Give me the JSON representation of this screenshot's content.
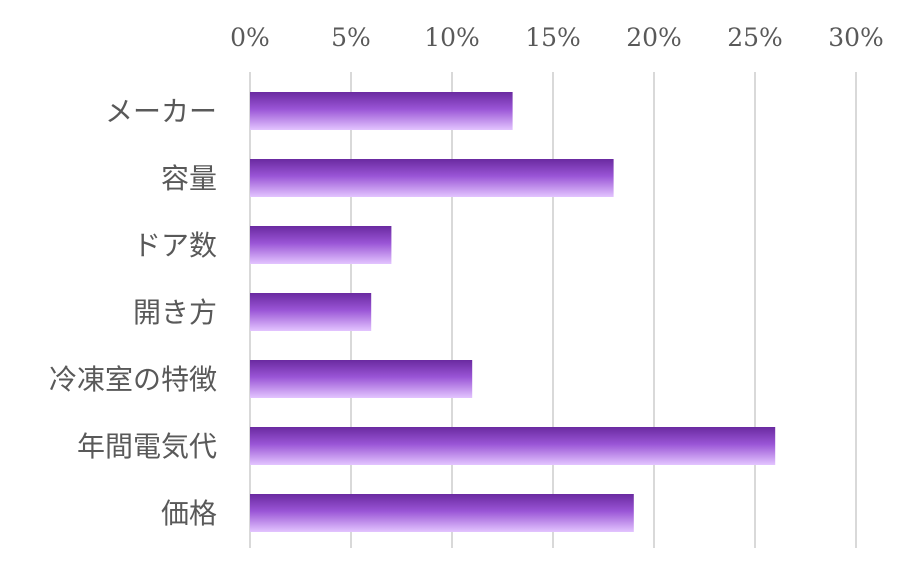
{
  "chart_data": {
    "type": "bar",
    "orientation": "horizontal",
    "categories": [
      "メーカー",
      "容量",
      "ドア数",
      "開き方",
      "冷凍室の特徴",
      "年間電気代",
      "価格"
    ],
    "values": [
      13,
      18,
      7,
      6,
      11,
      26,
      19
    ],
    "value_unit": "%",
    "xlim": [
      0,
      30
    ],
    "x_ticks": [
      0,
      5,
      10,
      15,
      20,
      25,
      30
    ],
    "x_tick_labels": [
      "0%",
      "5%",
      "10%",
      "15%",
      "20%",
      "25%",
      "30%"
    ],
    "x_axis_position": "top",
    "grid": true,
    "legend": false,
    "title": "",
    "xlabel": "",
    "ylabel": "",
    "colors": {
      "bar_top": "#6a2aa0",
      "bar_mid": "#9a55d6",
      "bar_bottom": "#e3c4ff",
      "grid": "#d9d9d9",
      "text": "#595959"
    }
  }
}
